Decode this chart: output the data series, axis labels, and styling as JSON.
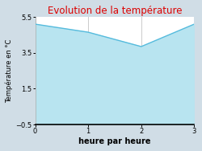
{
  "x": [
    0,
    1,
    2,
    3
  ],
  "y": [
    5.1,
    4.65,
    3.85,
    5.1
  ],
  "fill_color": "#b8e4f0",
  "line_color": "#55bbdd",
  "line_width": 1.0,
  "title": "Evolution de la température",
  "title_color": "#dd0000",
  "title_fontsize": 8.5,
  "xlabel": "heure par heure",
  "ylabel": "Température en °C",
  "xlabel_fontsize": 7,
  "ylabel_fontsize": 6,
  "xlim": [
    0,
    3
  ],
  "ylim": [
    -0.5,
    5.5
  ],
  "yticks": [
    -0.5,
    1.5,
    3.5,
    5.5
  ],
  "xticks": [
    0,
    1,
    2,
    3
  ],
  "outer_bg_color": "#d0dde6",
  "plot_bg_color": "#ffffff",
  "grid_color": "#cccccc",
  "axis_bottom_color": "#000000"
}
